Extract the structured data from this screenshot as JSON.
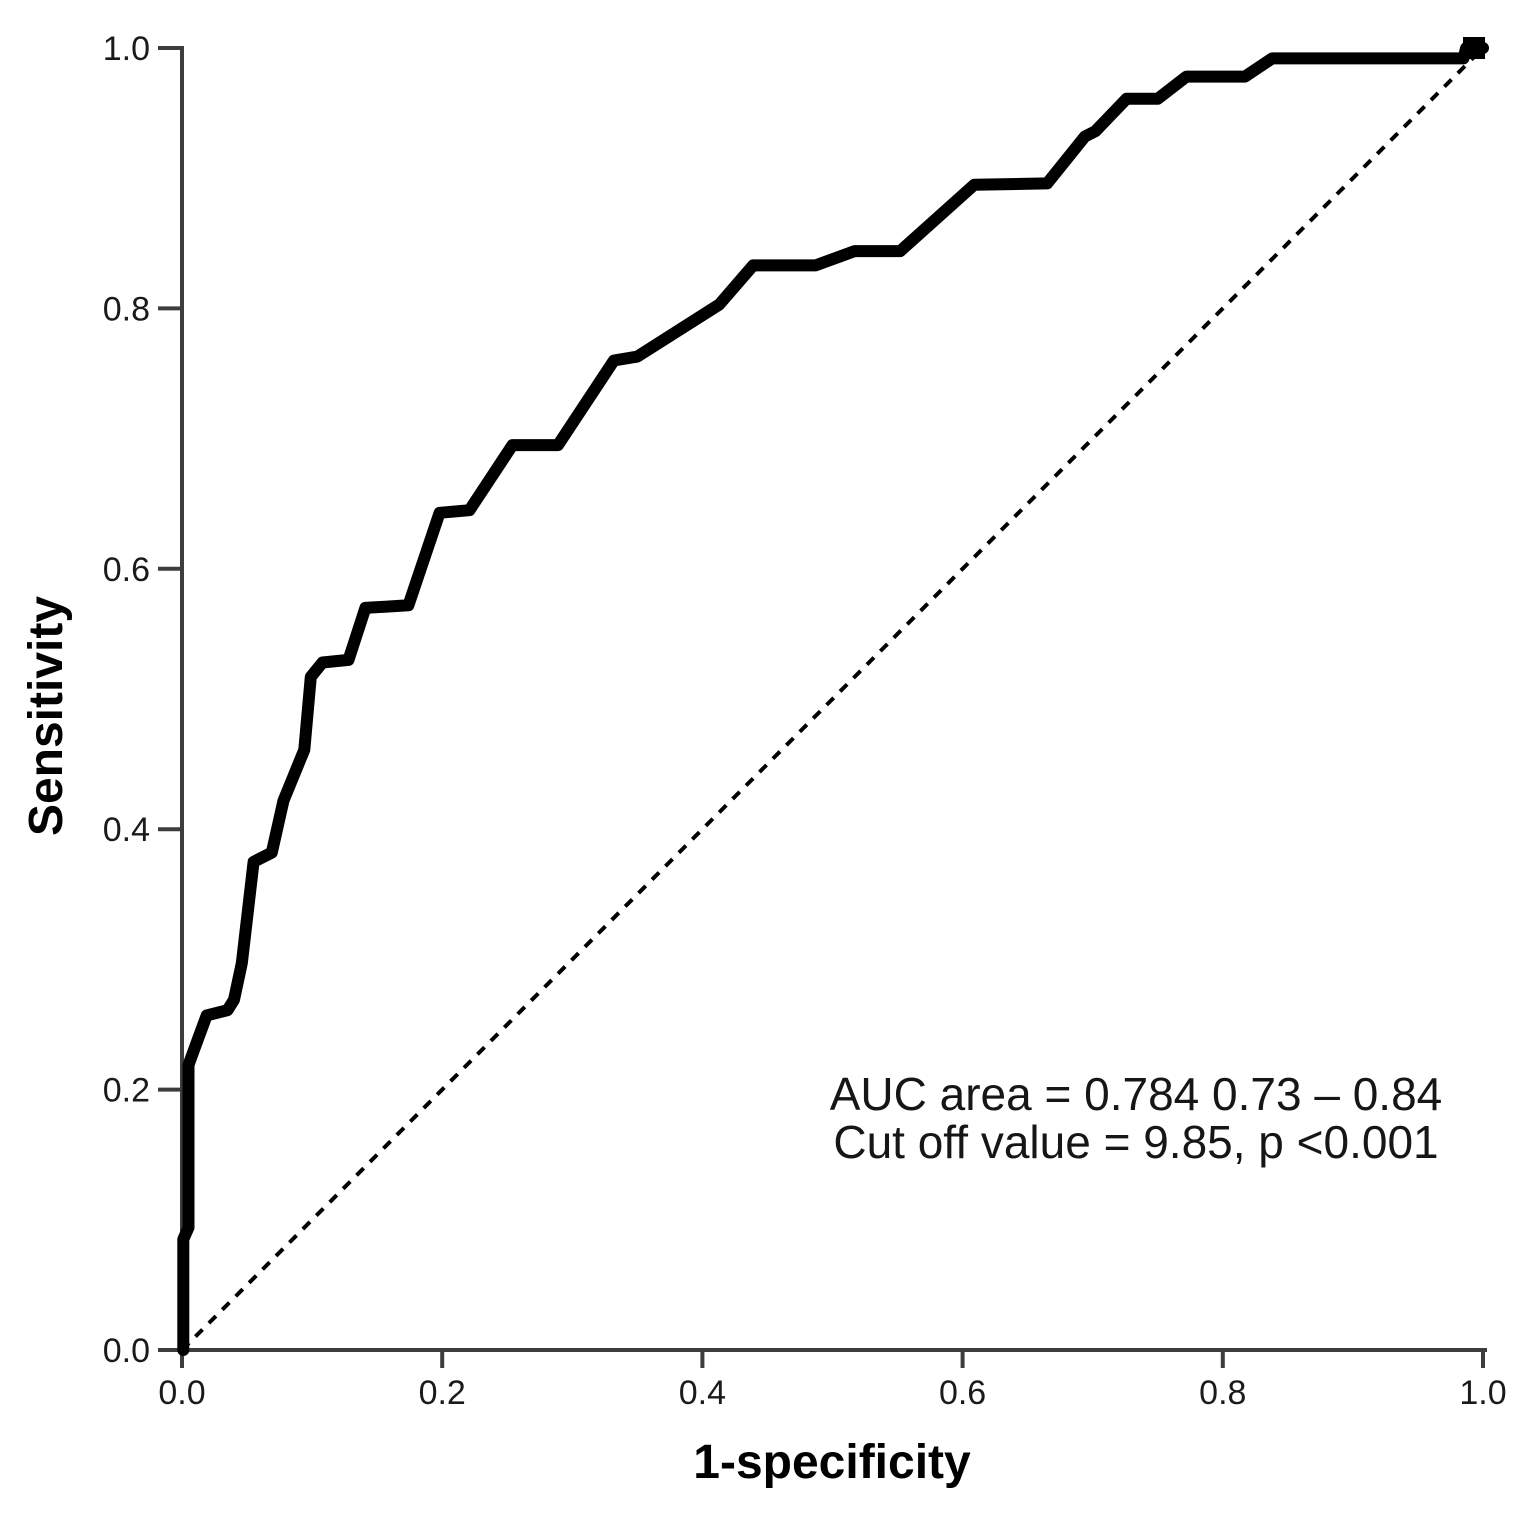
{
  "figure": {
    "background_color": "#ffffff",
    "axis_color": "#3d3d3d",
    "curve_color": "#000000",
    "reference_color": "#000000",
    "text_color": "#161616"
  },
  "chart_data": {
    "type": "line",
    "title": "",
    "xlabel": "1-specificity",
    "ylabel": "Sensitivity",
    "xlim": [
      0.0,
      1.0
    ],
    "ylim": [
      0.0,
      1.0
    ],
    "grid": false,
    "legend": "none",
    "x_ticks": [
      "0.0",
      "0.2",
      "0.4",
      "0.6",
      "0.8",
      "1.0"
    ],
    "y_ticks": [
      "0.0",
      "0.2",
      "0.4",
      "0.6",
      "0.8",
      "1.0"
    ],
    "series": [
      {
        "name": "ROC curve",
        "style": "solid",
        "points": [
          [
            0.001,
            0.0
          ],
          [
            0.001,
            0.085
          ],
          [
            0.005,
            0.094
          ],
          [
            0.005,
            0.219
          ],
          [
            0.012,
            0.238
          ],
          [
            0.019,
            0.257
          ],
          [
            0.035,
            0.261
          ],
          [
            0.04,
            0.269
          ],
          [
            0.046,
            0.297
          ],
          [
            0.055,
            0.375
          ],
          [
            0.069,
            0.382
          ],
          [
            0.078,
            0.422
          ],
          [
            0.094,
            0.461
          ],
          [
            0.099,
            0.517
          ],
          [
            0.108,
            0.528
          ],
          [
            0.128,
            0.53
          ],
          [
            0.141,
            0.57
          ],
          [
            0.174,
            0.572
          ],
          [
            0.198,
            0.643
          ],
          [
            0.221,
            0.645
          ],
          [
            0.254,
            0.695
          ],
          [
            0.289,
            0.695
          ],
          [
            0.332,
            0.76
          ],
          [
            0.35,
            0.763
          ],
          [
            0.413,
            0.803
          ],
          [
            0.439,
            0.833
          ],
          [
            0.487,
            0.833
          ],
          [
            0.517,
            0.844
          ],
          [
            0.552,
            0.844
          ],
          [
            0.609,
            0.895
          ],
          [
            0.665,
            0.896
          ],
          [
            0.694,
            0.932
          ],
          [
            0.702,
            0.936
          ],
          [
            0.726,
            0.961
          ],
          [
            0.75,
            0.961
          ],
          [
            0.772,
            0.978
          ],
          [
            0.817,
            0.978
          ],
          [
            0.838,
            0.992
          ],
          [
            0.985,
            0.992
          ],
          [
            0.987,
            1.0
          ],
          [
            1.0,
            1.0
          ]
        ]
      },
      {
        "name": "Reference diagonal",
        "style": "dashed",
        "points": [
          [
            0.0,
            0.0
          ],
          [
            1.0,
            1.0
          ]
        ]
      }
    ],
    "annotation": {
      "line1": "AUC area = 0.784 0.73 – 0.84",
      "line2": "Cut off value = 9.85, p <0.001",
      "auc": 0.784,
      "ci_low": 0.73,
      "ci_high": 0.84,
      "cutoff_value": 9.85,
      "p_value": "<0.001"
    }
  }
}
